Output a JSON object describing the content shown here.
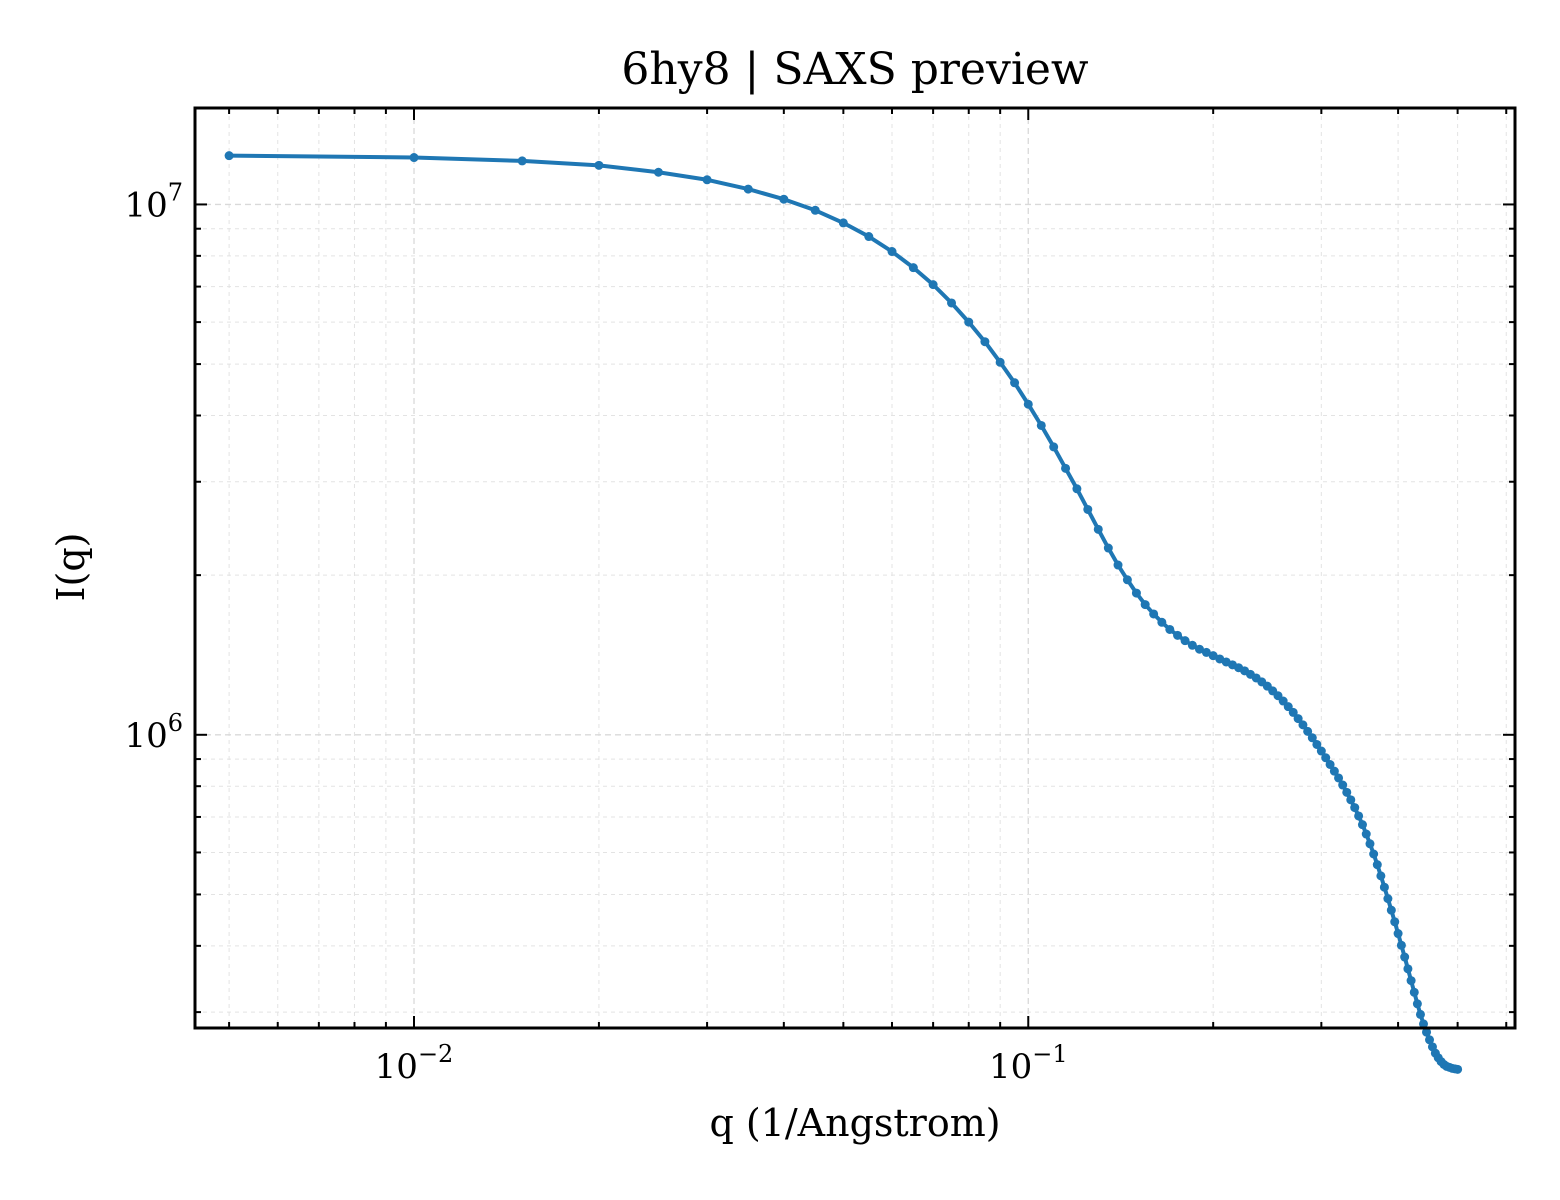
{
  "chart_data": {
    "type": "line",
    "title": "6hy8 | SAXS preview",
    "xlabel": "q (1/Angstrom)",
    "ylabel": "I(q)",
    "xscale": "log",
    "yscale": "log",
    "xlim": [
      0.0044,
      0.62
    ],
    "ylim": [
      280000,
      15200000
    ],
    "grid": true,
    "legend": "none",
    "x_ticks": [
      {
        "value": 0.01,
        "base": "10",
        "exp": "−2"
      },
      {
        "value": 0.1,
        "base": "10",
        "exp": "−1"
      }
    ],
    "y_ticks": [
      {
        "value": 1000000,
        "base": "10",
        "exp": "6"
      },
      {
        "value": 10000000,
        "base": "10",
        "exp": "7"
      }
    ],
    "series": [
      {
        "color": "#1f77b4",
        "x": [
          0.005,
          0.01,
          0.015,
          0.02,
          0.025,
          0.03,
          0.035,
          0.04,
          0.045,
          0.05,
          0.055,
          0.06,
          0.065,
          0.07,
          0.075,
          0.08,
          0.085,
          0.09,
          0.095,
          0.1,
          0.105,
          0.11,
          0.115,
          0.12,
          0.125,
          0.13,
          0.135,
          0.14,
          0.145,
          0.15,
          0.155,
          0.16,
          0.165,
          0.17,
          0.175,
          0.18,
          0.185,
          0.19,
          0.195,
          0.2,
          0.205,
          0.21,
          0.215,
          0.22,
          0.225,
          0.23,
          0.235,
          0.24,
          0.245,
          0.25,
          0.255,
          0.26,
          0.265,
          0.27,
          0.275,
          0.28,
          0.285,
          0.29,
          0.295,
          0.3,
          0.305,
          0.31,
          0.315,
          0.32,
          0.325,
          0.33,
          0.335,
          0.34,
          0.345,
          0.35,
          0.355,
          0.36,
          0.365,
          0.37,
          0.375,
          0.38,
          0.385,
          0.39,
          0.395,
          0.4,
          0.405,
          0.41,
          0.415,
          0.42,
          0.425,
          0.43,
          0.435,
          0.44,
          0.445,
          0.45,
          0.455,
          0.46,
          0.465,
          0.47,
          0.475,
          0.48,
          0.485,
          0.49,
          0.495,
          0.5
        ],
        "y": [
          12360000,
          12260000,
          12080000,
          11850000,
          11500000,
          11130000,
          10690000,
          10230000,
          9750000,
          9230000,
          8700000,
          8150000,
          7600000,
          7060000,
          6520000,
          6000000,
          5510000,
          5040000,
          4610000,
          4200000,
          3830000,
          3490000,
          3180000,
          2910000,
          2660000,
          2440000,
          2250000,
          2090000,
          1960000,
          1850000,
          1760000,
          1690000,
          1630000,
          1580000,
          1540000,
          1505000,
          1475000,
          1450000,
          1430000,
          1410000,
          1390000,
          1372000,
          1355000,
          1338000,
          1320000,
          1300000,
          1280000,
          1258000,
          1235000,
          1210000,
          1185000,
          1158000,
          1130000,
          1102000,
          1073000,
          1044000,
          1015000,
          987000,
          959000,
          932000,
          905000,
          879000,
          854000,
          829000,
          804000,
          779000,
          754000,
          729000,
          703000,
          677000,
          650000,
          623000,
          596000,
          569000,
          542000,
          516000,
          491000,
          467000,
          444000,
          422000,
          401000,
          381000,
          362000,
          344000,
          327000,
          311000,
          297000,
          285000,
          275000,
          266000,
          258000,
          251000,
          246000,
          242000,
          239000,
          237000,
          236000,
          235000,
          234500,
          234000
        ]
      }
    ]
  }
}
